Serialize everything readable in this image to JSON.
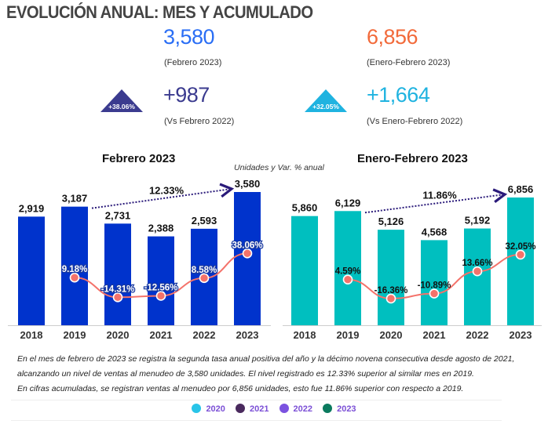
{
  "title": "EVOLUCIÓN ANUAL: MES Y ACUMULADO",
  "kpis": {
    "month_value": "3,580",
    "month_label": "(Febrero 2023)",
    "ytd_value": "6,856",
    "ytd_label": "(Enero-Febrero 2023)",
    "month_diff": "+987",
    "month_diff_label": "(Vs Febrero 2022)",
    "month_pct": "+38.06%",
    "ytd_diff": "+1,664",
    "ytd_diff_label": "(Vs Enero-Febrero 2022)",
    "ytd_pct": "+32.05%"
  },
  "colors": {
    "month_value": "#2a6ef5",
    "ytd_value": "#f26a3a",
    "month_diff": "#3b3b8f",
    "ytd_diff": "#1fb3e0",
    "bar_left": "#0033cc",
    "bar_right": "#00bfbf",
    "line": "#f4726a",
    "arrow": "#2a1a7a"
  },
  "units_note": "Unidades y Var. % anual",
  "chart_data": [
    {
      "type": "bar",
      "title": "Febrero 2023",
      "categories": [
        "2018",
        "2019",
        "2020",
        "2021",
        "2022",
        "2023"
      ],
      "values": [
        2919,
        3187,
        2731,
        2388,
        2593,
        3580
      ],
      "value_labels": [
        "2,919",
        "3,187",
        "2,731",
        "2,388",
        "2,593",
        "3,580"
      ],
      "line_series": {
        "values": [
          null,
          9.18,
          -14.31,
          -12.56,
          8.58,
          38.06
        ],
        "labels": [
          "",
          "9.18%",
          "-14.31%",
          "-12.56%",
          "8.58%",
          "38.06%"
        ]
      },
      "annotation": "12.33%"
    },
    {
      "type": "bar",
      "title": "Enero-Febrero 2023",
      "categories": [
        "2018",
        "2019",
        "2020",
        "2021",
        "2022",
        "2023"
      ],
      "values": [
        5860,
        6129,
        5126,
        4568,
        5192,
        6856
      ],
      "value_labels": [
        "5,860",
        "6,129",
        "5,126",
        "4,568",
        "5,192",
        "6,856"
      ],
      "line_series": {
        "values": [
          null,
          4.59,
          -16.36,
          -10.89,
          13.66,
          32.05
        ],
        "labels": [
          "",
          "4.59%",
          "-16.36%",
          "-10.89%",
          "13.66%",
          "32.05%"
        ]
      },
      "annotation": "11.86%"
    }
  ],
  "note_lines": [
    "En el mes de febrero de 2023 se registra la segunda tasa anual positiva del año y la décimo novena consecutiva desde agosto de 2021,",
    "alcanzando un nivel de ventas al menudeo de 3,580 unidades. El nivel registrado es 12.33% superior al similar mes en 2019.",
    "En cifras acumuladas, se registran ventas al menudeo por 6,856 unidades, esto fue 11.86% superior con respecto a 2019."
  ],
  "legend": [
    {
      "label": "2020",
      "color": "#29c4e8"
    },
    {
      "label": "2021",
      "color": "#4a2a5e"
    },
    {
      "label": "2022",
      "color": "#7b52e0"
    },
    {
      "label": "2023",
      "color": "#0b7a5e"
    }
  ]
}
